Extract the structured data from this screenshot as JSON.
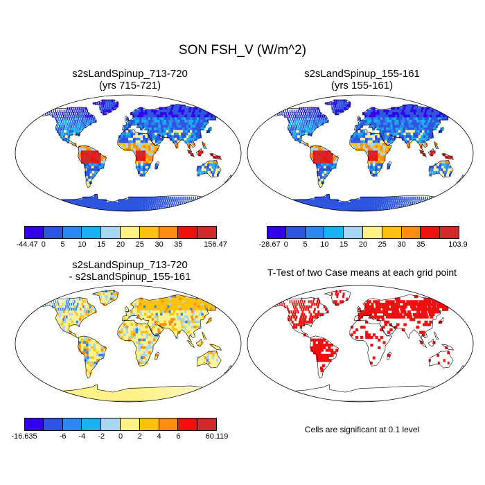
{
  "title": "SON FSH_V (W/m^2)",
  "panels": [
    {
      "title1": "s2sLandSpinup_713-720",
      "title2": "(yrs 715-721)"
    },
    {
      "title1": "s2sLandSpinup_155-161",
      "title2": "(yrs 155-161)"
    },
    {
      "title1": "s2sLandSpinup_713-720",
      "title2": "- s2sLandSpinup_155-161"
    },
    {
      "title1": "T-Test of two Case means at each grid point",
      "title2": ""
    }
  ],
  "colorbars": [
    {
      "colors": [
        "#3300ee",
        "#2e55e0",
        "#2f86ef",
        "#19b3f0",
        "#a9d6f2",
        "#fff28a",
        "#fcc20e",
        "#fb8d10",
        "#f40f0f",
        "#d22a2a"
      ],
      "labels": [
        "-44.47",
        "0",
        "5",
        "10",
        "15",
        "20",
        "25",
        "30",
        "35",
        "156.47"
      ]
    },
    {
      "colors": [
        "#3300ee",
        "#2e55e0",
        "#2f86ef",
        "#19b3f0",
        "#a9d6f2",
        "#fff28a",
        "#fcc20e",
        "#fb8d10",
        "#f40f0f",
        "#d22a2a"
      ],
      "labels": [
        "-28.67",
        "0",
        "5",
        "10",
        "15",
        "20",
        "25",
        "30",
        "35",
        "103.9"
      ]
    },
    {
      "colors": [
        "#3300ee",
        "#2e55e0",
        "#2f86ef",
        "#19b3f0",
        "#a9d6f2",
        "#fff28a",
        "#fcc20e",
        "#fb8d10",
        "#f40f0f",
        "#d22a2a"
      ],
      "labels": [
        "-16.635",
        "-6",
        "-4",
        "-2",
        "0",
        "2",
        "4",
        "6",
        "60.119"
      ]
    }
  ],
  "significance_note": "Cells are significant at 0.1 level",
  "colors": {
    "ocean": "#ffffff",
    "outline": "#000000",
    "significant": "#ee1111"
  }
}
